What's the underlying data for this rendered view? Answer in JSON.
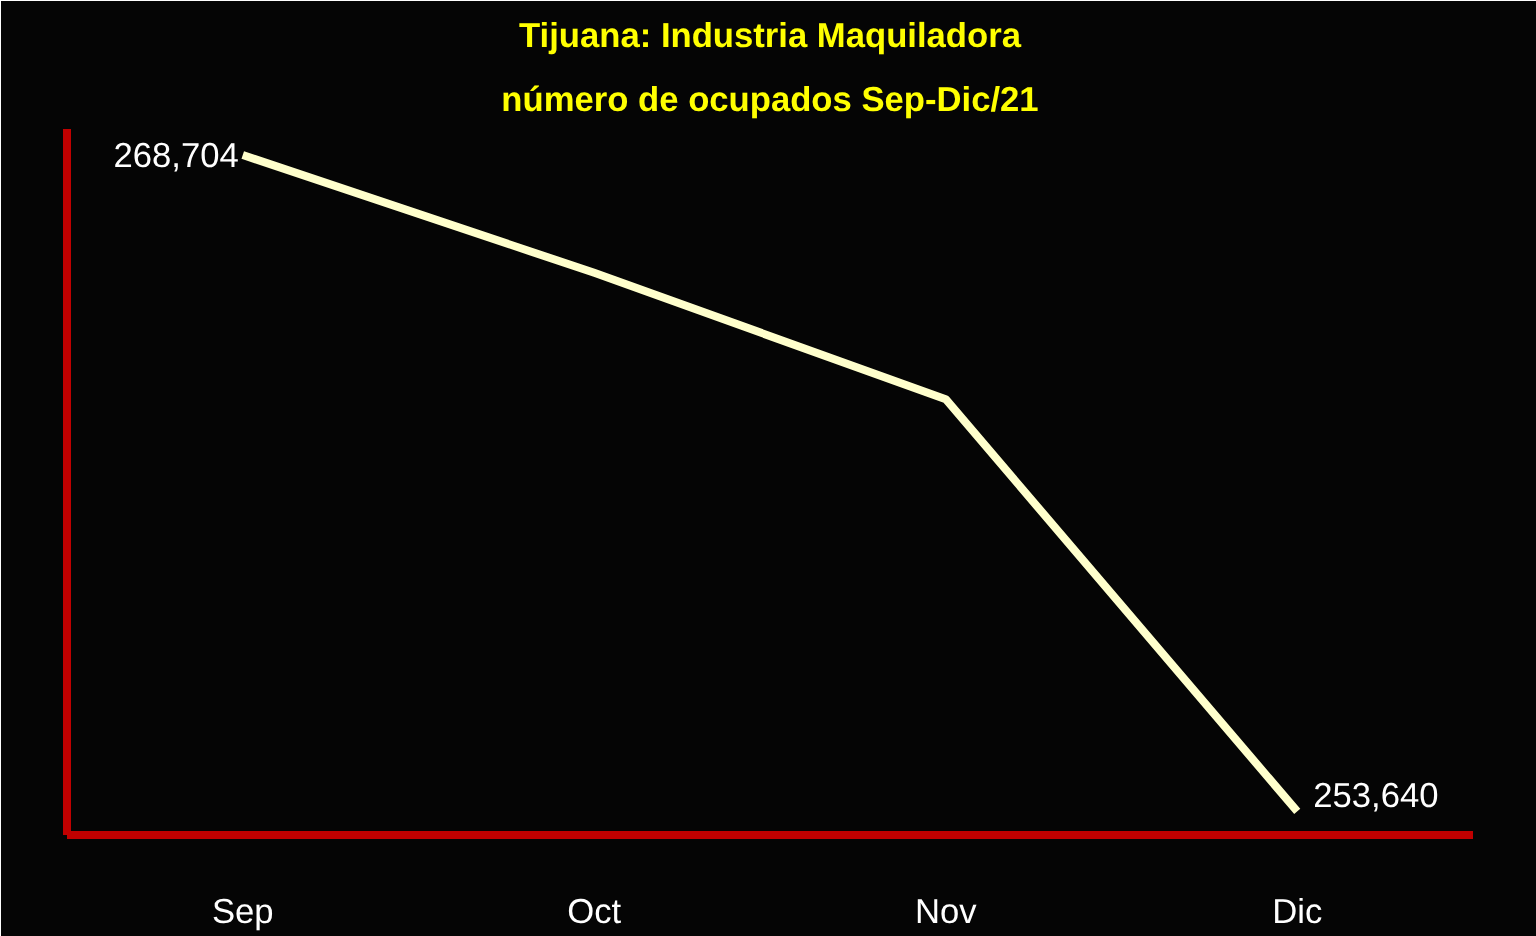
{
  "chart_data": {
    "type": "line",
    "title": "Tijuana: Industria Maquiladora",
    "subtitle": "número de ocupados Sep-Dic/21",
    "categories": [
      "Sep",
      "Oct",
      "Nov",
      "Dic"
    ],
    "series": [
      {
        "color": "#ffffcc",
        "values": [
          268704,
          266000,
          263100,
          253640
        ],
        "value_labels": [
          "268,704",
          null,
          null,
          "253,640"
        ]
      }
    ],
    "ylim": [
      253100,
      269300
    ],
    "grid": false,
    "marker": "none",
    "line_style": "solid",
    "tick_labels": "x"
  }
}
